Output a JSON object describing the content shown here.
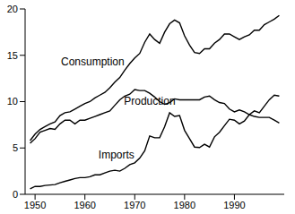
{
  "chart_data": {
    "type": "line",
    "x": [
      1949,
      1950,
      1951,
      1952,
      1953,
      1954,
      1955,
      1956,
      1957,
      1958,
      1959,
      1960,
      1961,
      1962,
      1963,
      1964,
      1965,
      1966,
      1967,
      1968,
      1969,
      1970,
      1971,
      1972,
      1973,
      1974,
      1975,
      1976,
      1977,
      1978,
      1979,
      1980,
      1981,
      1982,
      1983,
      1984,
      1985,
      1986,
      1987,
      1988,
      1989,
      1990,
      1991,
      1992,
      1993,
      1994,
      1995,
      1996,
      1997,
      1998,
      1999
    ],
    "series": [
      {
        "name": "Consumption",
        "color": "#000000",
        "values": [
          5.8,
          6.5,
          7.0,
          7.3,
          7.6,
          7.8,
          8.5,
          8.8,
          8.9,
          9.2,
          9.5,
          9.8,
          10.0,
          10.4,
          10.7,
          11.0,
          11.5,
          12.1,
          12.6,
          13.4,
          14.1,
          14.7,
          15.2,
          16.4,
          17.3,
          16.7,
          16.3,
          17.5,
          18.4,
          18.8,
          18.5,
          17.1,
          16.1,
          15.3,
          15.2,
          15.7,
          15.7,
          16.3,
          16.7,
          17.3,
          17.3,
          17.0,
          16.7,
          17.0,
          17.2,
          17.7,
          17.7,
          18.3,
          18.6,
          18.9,
          19.3
        ]
      },
      {
        "name": "Production",
        "color": "#000000",
        "values": [
          5.5,
          6.0,
          6.7,
          6.9,
          7.1,
          7.0,
          7.6,
          8.0,
          8.0,
          7.6,
          8.0,
          8.0,
          8.2,
          8.4,
          8.6,
          8.8,
          9.0,
          9.6,
          10.2,
          10.6,
          10.8,
          11.3,
          11.2,
          11.2,
          10.9,
          10.5,
          10.0,
          9.7,
          9.9,
          10.3,
          10.2,
          10.2,
          10.2,
          10.2,
          10.2,
          10.5,
          10.6,
          10.2,
          9.9,
          9.8,
          9.2,
          8.9,
          9.1,
          8.9,
          8.6,
          8.4,
          8.3,
          8.3,
          8.3,
          8.0,
          7.7
        ]
      },
      {
        "name": "Imports",
        "color": "#000000",
        "values": [
          0.6,
          0.85,
          0.85,
          0.95,
          1.0,
          1.05,
          1.25,
          1.4,
          1.55,
          1.7,
          1.8,
          1.8,
          1.9,
          2.1,
          2.1,
          2.3,
          2.5,
          2.6,
          2.5,
          2.8,
          3.2,
          3.4,
          3.9,
          4.7,
          6.3,
          6.1,
          6.1,
          7.3,
          8.8,
          8.4,
          8.5,
          6.9,
          6.0,
          5.1,
          5.05,
          5.4,
          5.1,
          6.2,
          6.7,
          7.4,
          8.1,
          8.0,
          7.6,
          7.9,
          8.6,
          9.0,
          8.8,
          9.5,
          10.2,
          10.7,
          10.6
        ]
      }
    ],
    "xlim": [
      1948,
      2000
    ],
    "xticks": [
      1950,
      1960,
      1970,
      1980,
      1990
    ],
    "ylim": [
      0,
      20
    ],
    "yticks": [
      0,
      5,
      10,
      15,
      20
    ],
    "grid": false
  }
}
